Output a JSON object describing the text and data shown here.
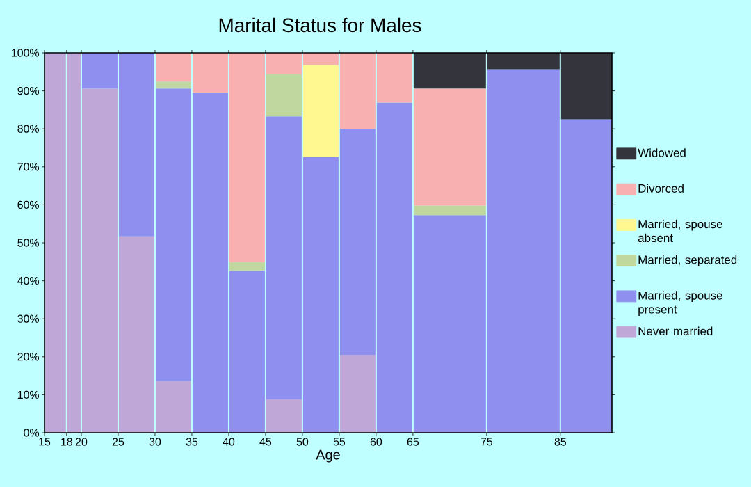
{
  "chart_data": {
    "type": "bar",
    "stacked": true,
    "title": "Marital Status for Males",
    "xlabel": "Age",
    "x": [
      16.5,
      19,
      22.5,
      27.5,
      32.5,
      37.5,
      42.5,
      47.5,
      52.5,
      57.5,
      62.5,
      70,
      80,
      88.5
    ],
    "series": [
      {
        "name": "Never married",
        "color": "#bfa8d8",
        "values": [
          100,
          100,
          90.6,
          51.7,
          13.6,
          0,
          0,
          8.8,
          0,
          20.5,
          0,
          0,
          0,
          0
        ]
      },
      {
        "name": "Married, spouse present",
        "color": "#8f8ff0",
        "values": [
          0,
          0,
          9.4,
          48.3,
          77,
          89.5,
          42.7,
          74.5,
          72.6,
          59.5,
          86.9,
          57.3,
          95.7,
          82.5
        ]
      },
      {
        "name": "Married, separated",
        "color": "#c0d8a0",
        "values": [
          0,
          0,
          0,
          0,
          1.8,
          0,
          2.2,
          11,
          0,
          0,
          0,
          2.5,
          0,
          0
        ]
      },
      {
        "name": "Married, spouse absent",
        "color": "#fff890",
        "values": [
          0,
          0,
          0,
          0,
          0,
          0,
          0,
          0,
          24.2,
          0,
          0,
          0,
          0,
          0
        ]
      },
      {
        "name": "Divorced",
        "color": "#f8b0b0",
        "values": [
          0,
          0,
          0,
          0,
          7.6,
          10.5,
          55.1,
          5.7,
          3.2,
          20,
          13.1,
          30.8,
          0,
          0
        ]
      },
      {
        "name": "Widowed",
        "color": "#34343c",
        "values": [
          0,
          0,
          0,
          0,
          0,
          0,
          0,
          0,
          0,
          0,
          0,
          9.4,
          4.3,
          17.5
        ]
      }
    ],
    "xlim": [
      15,
      92
    ],
    "xticks": [
      15,
      18,
      20,
      25,
      30,
      35,
      40,
      45,
      50,
      55,
      60,
      65,
      75,
      85
    ],
    "ylim": [
      0,
      100
    ],
    "yticks": [
      {
        "value": 0,
        "label": "0%"
      },
      {
        "value": 10,
        "label": "10%"
      },
      {
        "value": 20,
        "label": "20%"
      },
      {
        "value": 30,
        "label": "30%"
      },
      {
        "value": 40,
        "label": "40%"
      },
      {
        "value": 50,
        "label": "50%"
      },
      {
        "value": 60,
        "label": "60%"
      },
      {
        "value": 70,
        "label": "70%"
      },
      {
        "value": 80,
        "label": "80%"
      },
      {
        "value": 90,
        "label": "90%"
      },
      {
        "value": 100,
        "label": "100%"
      }
    ],
    "grid": "x",
    "legend": "right"
  }
}
